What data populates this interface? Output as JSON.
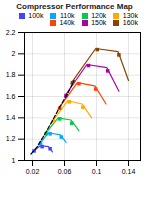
{
  "chart_data": {
    "type": "line",
    "title": "Compressor Performance Map",
    "xlim": [
      0.01,
      0.155
    ],
    "ylim": [
      1.0,
      2.2
    ],
    "xticks": [
      0.02,
      0.06,
      0.1,
      0.14
    ],
    "yticks": [
      1.0,
      1.2,
      1.4,
      1.6,
      1.8,
      2.0,
      2.2
    ],
    "grid": true,
    "legend": "upper right",
    "series": [
      {
        "name": "100k",
        "type": "line",
        "color": "#4444ff",
        "x": [
          0.02,
          0.03,
          0.04,
          0.045
        ],
        "values": [
          1.08,
          1.14,
          1.13,
          1.08
        ]
      },
      {
        "name": "110k",
        "type": "line",
        "color": "#00aaff",
        "x": [
          0.028,
          0.04,
          0.055,
          0.062
        ],
        "values": [
          1.15,
          1.26,
          1.24,
          1.17
        ]
      },
      {
        "name": "120k",
        "type": "line",
        "color": "#00cc44",
        "x": [
          0.035,
          0.052,
          0.068,
          0.078
        ],
        "values": [
          1.24,
          1.4,
          1.38,
          1.28
        ]
      },
      {
        "name": "130k",
        "type": "line",
        "color": "#ffaa00",
        "x": [
          0.044,
          0.064,
          0.082,
          0.094
        ],
        "values": [
          1.36,
          1.56,
          1.53,
          1.4
        ]
      },
      {
        "name": "140k",
        "type": "line",
        "color": "#ff4400",
        "x": [
          0.052,
          0.076,
          0.098,
          0.112
        ],
        "values": [
          1.48,
          1.73,
          1.7,
          1.53
        ]
      },
      {
        "name": "150k",
        "type": "line",
        "color": "#aa00aa",
        "x": [
          0.06,
          0.088,
          0.113,
          0.128
        ],
        "values": [
          1.6,
          1.9,
          1.87,
          1.65
        ]
      },
      {
        "name": "160k",
        "type": "line",
        "color": "#884400",
        "x": [
          0.068,
          0.099,
          0.127,
          0.14
        ],
        "values": [
          1.72,
          2.05,
          2.02,
          1.75
        ]
      },
      {
        "type": "scatter",
        "marker": "square",
        "color": "#4444ff",
        "x": [
          0.022,
          0.032,
          0.042
        ],
        "values": [
          1.09,
          1.13,
          1.11
        ]
      },
      {
        "type": "scatter",
        "marker": "square",
        "color": "#00aaff",
        "x": [
          0.03,
          0.042,
          0.056
        ],
        "values": [
          1.16,
          1.25,
          1.22
        ]
      },
      {
        "type": "scatter",
        "marker": "square",
        "color": "#00cc44",
        "x": [
          0.037,
          0.054,
          0.069
        ],
        "values": [
          1.25,
          1.39,
          1.35
        ]
      },
      {
        "type": "scatter",
        "marker": "square",
        "color": "#ffaa00",
        "x": [
          0.046,
          0.066,
          0.083
        ],
        "values": [
          1.37,
          1.55,
          1.5
        ]
      },
      {
        "type": "scatter",
        "marker": "square",
        "color": "#ff4400",
        "x": [
          0.054,
          0.078,
          0.099
        ],
        "values": [
          1.49,
          1.72,
          1.67
        ]
      },
      {
        "type": "scatter",
        "marker": "square",
        "color": "#aa00aa",
        "x": [
          0.062,
          0.09,
          0.114
        ],
        "values": [
          1.61,
          1.89,
          1.84
        ]
      },
      {
        "type": "scatter",
        "marker": "square",
        "color": "#884400",
        "x": [
          0.07,
          0.101,
          0.128
        ],
        "values": [
          1.73,
          2.04,
          1.99
        ]
      },
      {
        "type": "line",
        "color": "#000000",
        "line_style": "dashed",
        "x": [
          0.018,
          0.026,
          0.034,
          0.044,
          0.054,
          0.064,
          0.072
        ],
        "values": [
          1.06,
          1.13,
          1.23,
          1.36,
          1.5,
          1.63,
          1.75
        ]
      }
    ]
  }
}
